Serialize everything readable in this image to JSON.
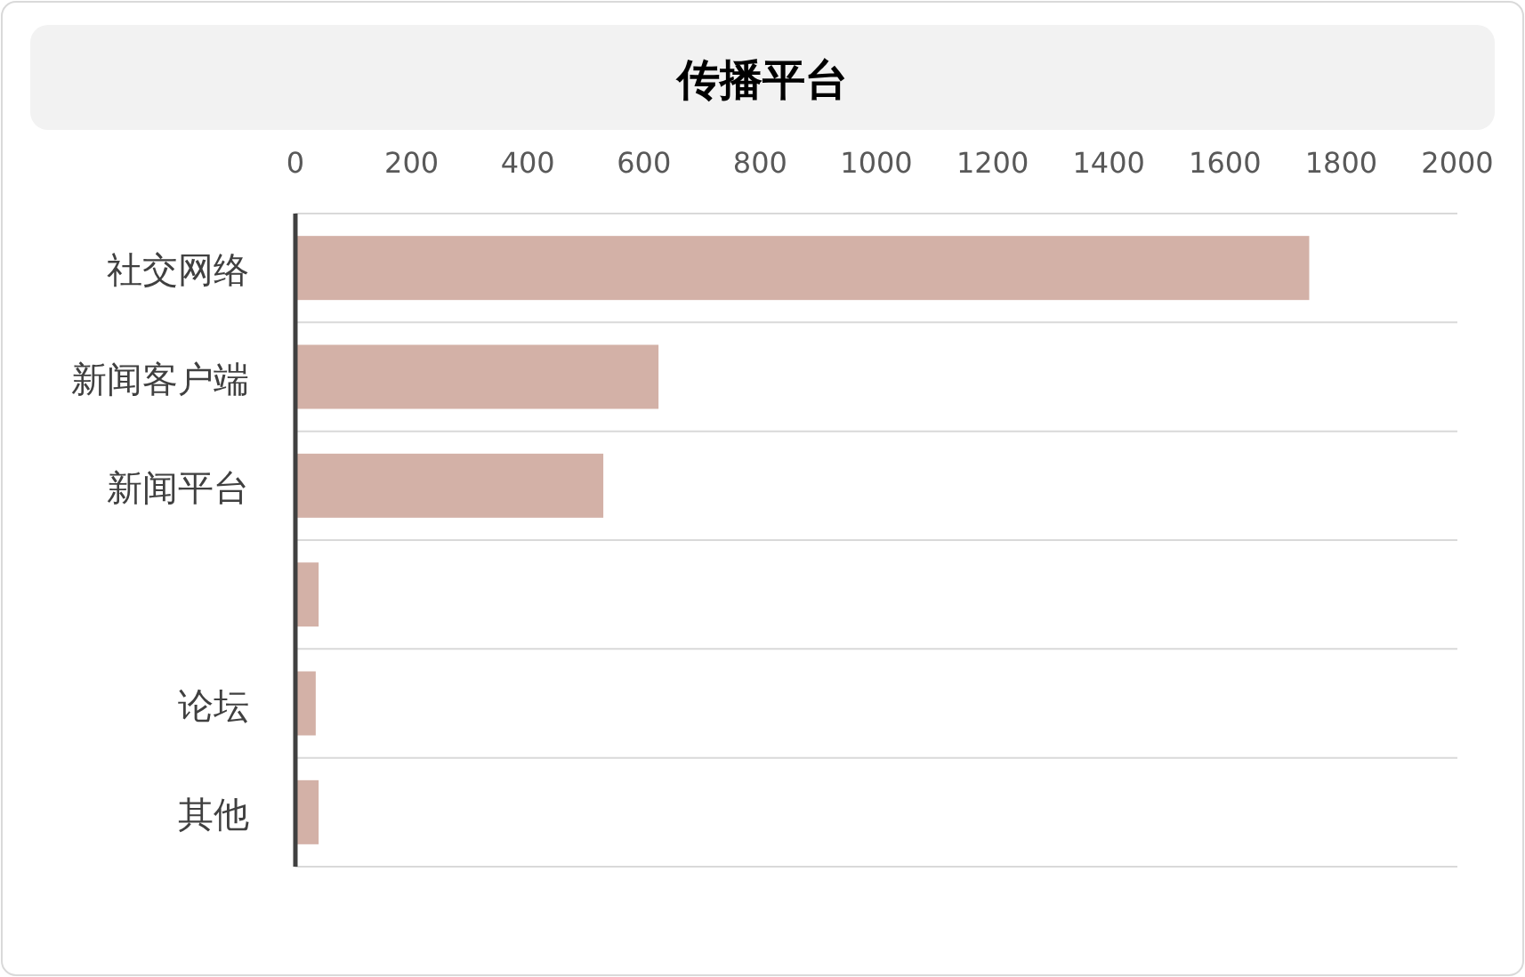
{
  "chart_data": {
    "type": "bar",
    "orientation": "horizontal",
    "title": "传播平台",
    "categories": [
      "社交网络",
      "新闻客户端",
      "新闻平台",
      null,
      "论坛",
      "其他"
    ],
    "values": [
      1745,
      625,
      530,
      40,
      35,
      40
    ],
    "color": "#d3b1a7",
    "xlim": [
      0,
      2000
    ],
    "xticks": [
      0,
      200,
      400,
      600,
      800,
      1000,
      1200,
      1400,
      1600,
      1800,
      2000
    ],
    "grid": "y"
  }
}
